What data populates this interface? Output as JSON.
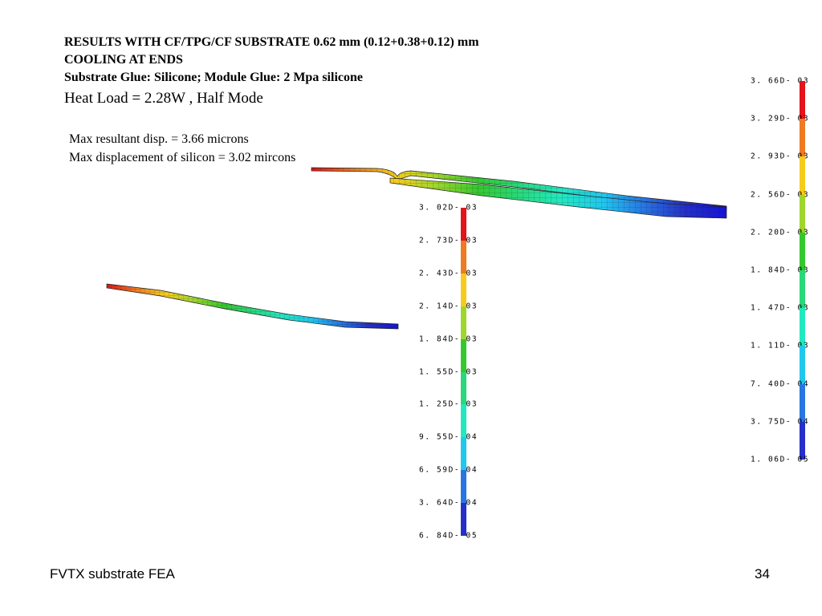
{
  "slide": {
    "title_lines": [
      "RESULTS WITH CF/TPG/CF SUBSTRATE 0.62 mm (0.12+0.38+0.12) mm",
      "COOLING AT ENDS",
      "Substrate Glue: Silicone;  Module Glue: 2 Mpa silicone"
    ],
    "heat_load": "Heat Load = 2.28W , Half Mode",
    "stats": [
      "Max resultant disp. = 3.66 microns",
      "Max displacement of silicon = 3.02 mircons"
    ],
    "footer_left": "FVTX substrate FEA",
    "page_number": "34"
  },
  "legends": {
    "resultant": {
      "labels": [
        "3. 66D- 03",
        "3. 29D- 03",
        "2. 93D- 03",
        "2. 56D- 03",
        "2. 20D- 03",
        "1. 84D- 03",
        "1. 47D- 03",
        "1. 11D- 03",
        "7. 40D- 04",
        "3. 75D- 04",
        "1. 06D- 05"
      ],
      "colors": [
        "#e3141a",
        "#ee7a22",
        "#f6cc1c",
        "#9ed62c",
        "#35c82e",
        "#28d87a",
        "#22e8c0",
        "#20c8ee",
        "#2876e2",
        "#2530c8",
        "#1414d8"
      ]
    },
    "silicon": {
      "labels": [
        "3. 02D- 03",
        "2. 73D- 03",
        "2. 43D- 03",
        "2. 14D- 03",
        "1. 84D- 03",
        "1. 55D- 03",
        "1. 25D- 03",
        "9. 55D- 04",
        "6. 59D- 04",
        "3. 64D- 04",
        "6. 84D- 05"
      ],
      "colors": [
        "#e3141a",
        "#ee7a22",
        "#f6cc1c",
        "#9ed62c",
        "#35c82e",
        "#28d87a",
        "#22e8c0",
        "#20c8ee",
        "#2876e2",
        "#2530c8",
        "#1414d8"
      ]
    }
  },
  "plot_colors": {
    "gradient": [
      "#e3141a",
      "#ee7a22",
      "#f6cc1c",
      "#9ed62c",
      "#35c82e",
      "#28d87a",
      "#22e8c0",
      "#20c8ee",
      "#2876e2",
      "#2530c8",
      "#1414d8"
    ],
    "mesh": "#1a1a1a"
  }
}
